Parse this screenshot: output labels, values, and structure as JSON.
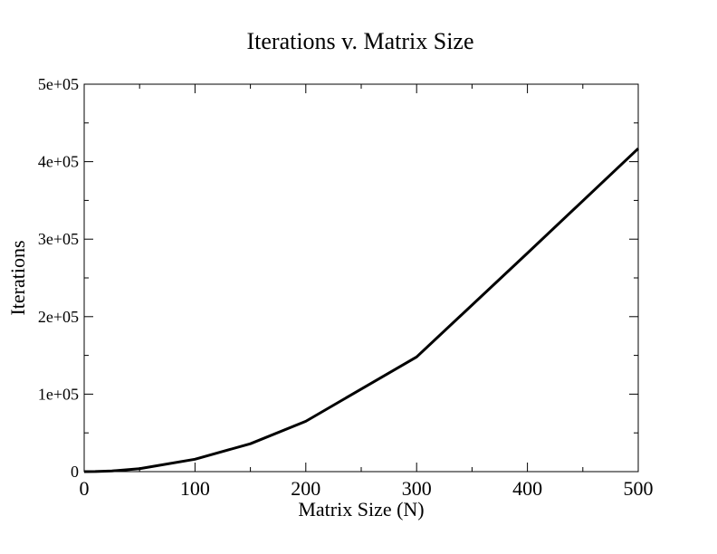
{
  "chart_data": {
    "type": "line",
    "title": "Iterations v. Matrix Size",
    "xlabel": "Matrix Size (N)",
    "ylabel": "Iterations",
    "xlim": [
      0,
      500
    ],
    "ylim": [
      0,
      500000
    ],
    "xticks": [
      0,
      100,
      200,
      300,
      400,
      500
    ],
    "xtick_labels": [
      "0",
      "100",
      "200",
      "300",
      "400",
      "500"
    ],
    "yticks": [
      0,
      100000,
      200000,
      300000,
      400000,
      500000
    ],
    "ytick_labels": [
      "0",
      "1e+05",
      "2e+05",
      "3e+05",
      "4e+05",
      "5e+05"
    ],
    "grid": false,
    "series": [
      {
        "color": "#000000",
        "x": [
          0,
          10,
          25,
          50,
          100,
          150,
          200,
          300,
          400,
          500
        ],
        "y": [
          0,
          150,
          900,
          3800,
          16000,
          36000,
          65000,
          148000,
          282000,
          417000
        ]
      }
    ]
  }
}
